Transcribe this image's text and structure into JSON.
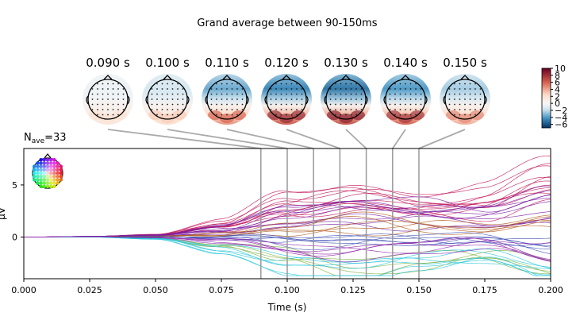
{
  "figure": {
    "suptitle": "Grand average between 90-150ms"
  },
  "chart_data": [
    {
      "type": "topomap",
      "times_label": [
        "0.090 s",
        "0.100 s",
        "0.110 s",
        "0.120 s",
        "0.130 s",
        "0.140 s",
        "0.150 s"
      ],
      "times": [
        0.09,
        0.1,
        0.11,
        0.12,
        0.13,
        0.14,
        0.15
      ],
      "frontal_level": [
        -0.5,
        -1.5,
        -3.5,
        -4.5,
        -5.0,
        -4.0,
        -2.5
      ],
      "posterior_level": [
        2.0,
        3.0,
        6.0,
        8.5,
        9.0,
        8.0,
        5.0
      ],
      "colormap": "RdBu_r",
      "colorbar": {
        "ticks": [
          "10",
          "8",
          "6",
          "4",
          "2",
          "0",
          "−2",
          "−4",
          "−6"
        ],
        "tick_values": [
          10,
          8,
          6,
          4,
          2,
          0,
          -2,
          -4,
          -6
        ],
        "range": [
          -7,
          10
        ]
      }
    },
    {
      "type": "line",
      "annotation_main": "N",
      "annotation_sub": "ave",
      "annotation_value": "=33",
      "xlabel": "Time (s)",
      "ylabel": "µV",
      "xlim": [
        0.0,
        0.2
      ],
      "ylim": [
        -4.0,
        8.5
      ],
      "xticks": [
        0.0,
        0.025,
        0.05,
        0.075,
        0.1,
        0.125,
        0.15,
        0.175,
        0.2
      ],
      "xtick_labels": [
        "0.000",
        "0.025",
        "0.050",
        "0.075",
        "0.100",
        "0.125",
        "0.150",
        "0.175",
        "0.200"
      ],
      "yticks": [
        0,
        5
      ],
      "ytick_labels": [
        "0",
        "5"
      ],
      "vlines": [
        0.09,
        0.1,
        0.11,
        0.12,
        0.13,
        0.14,
        0.15
      ],
      "x": [
        0.0,
        0.025,
        0.05,
        0.075,
        0.1,
        0.125,
        0.15,
        0.175,
        0.2
      ],
      "series_groups": [
        {
          "color": "#c2185b",
          "count": 11,
          "values": [
            0.0,
            0.05,
            0.2,
            1.2,
            3.0,
            4.0,
            3.2,
            3.5,
            5.5
          ]
        },
        {
          "color": "#7b1fa2",
          "count": 10,
          "values": [
            0.0,
            0.05,
            0.15,
            0.7,
            1.8,
            2.3,
            2.2,
            1.9,
            2.8
          ]
        },
        {
          "color": "#b35a1f",
          "count": 5,
          "values": [
            0.0,
            0.03,
            0.1,
            0.3,
            0.9,
            1.8,
            1.4,
            0.9,
            2.2
          ]
        },
        {
          "color": "#3f51b5",
          "count": 6,
          "values": [
            0.0,
            0.0,
            0.05,
            -0.1,
            -0.3,
            -0.4,
            -0.2,
            -0.3,
            -0.4
          ]
        },
        {
          "color": "#7cb342",
          "count": 4,
          "values": [
            0.0,
            0.0,
            -0.1,
            -0.8,
            -1.7,
            -2.4,
            -1.9,
            -1.6,
            -2.3
          ]
        },
        {
          "color": "#26c6da",
          "count": 6,
          "values": [
            0.0,
            0.0,
            -0.15,
            -1.2,
            -2.5,
            -3.0,
            -2.4,
            -1.8,
            -2.8
          ]
        },
        {
          "color": "#8e24aa",
          "count": 5,
          "values": [
            0.0,
            0.05,
            -0.05,
            -0.5,
            -1.1,
            -1.4,
            -1.2,
            -1.0,
            -1.6
          ]
        }
      ]
    }
  ]
}
